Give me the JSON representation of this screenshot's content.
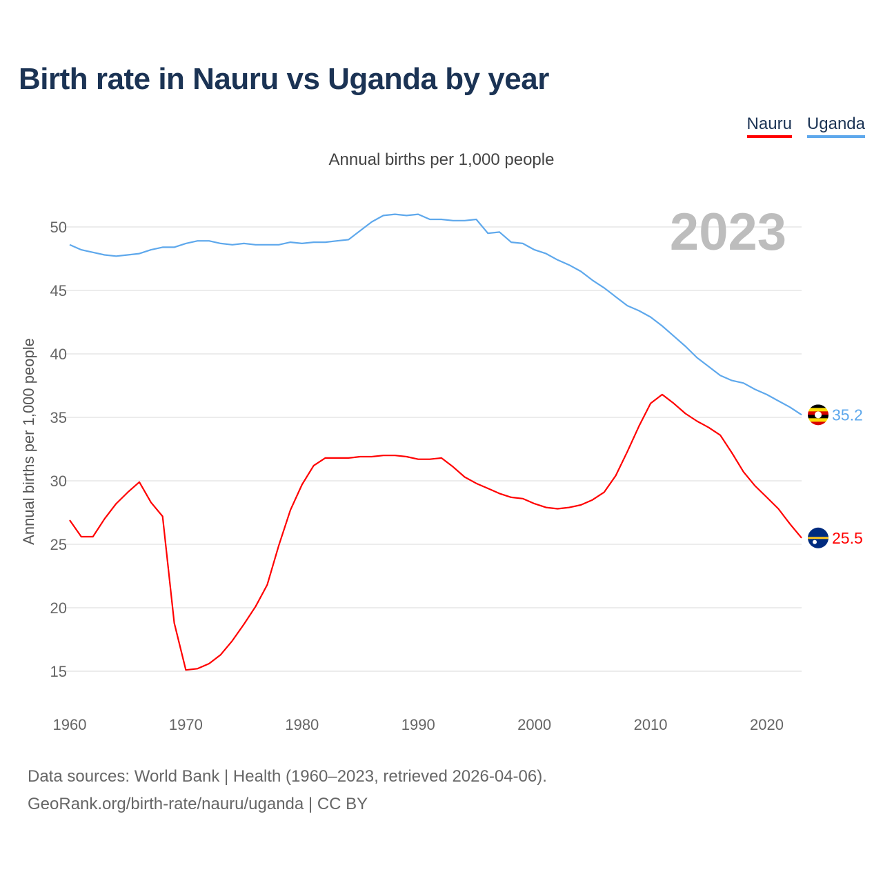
{
  "title": "Birth rate in Nauru vs Uganda by year",
  "legend": [
    {
      "label": "Nauru",
      "color": "#ff0000"
    },
    {
      "label": "Uganda",
      "color": "#5ea8ec"
    }
  ],
  "subtitle": "Annual births per 1,000 people",
  "footer": {
    "line1": "Data sources: World Bank | Health (1960–2023, retrieved 2026-04-06).",
    "line2": "GeoRank.org/birth-rate/nauru/uganda | CC BY"
  },
  "chart_data": {
    "type": "line",
    "title": "Birth rate in Nauru vs Uganda by year",
    "xlabel": "",
    "ylabel": "Annual births per 1,000 people",
    "year_label": "2023",
    "xlim": [
      1960,
      2023
    ],
    "ylim": [
      15,
      50
    ],
    "xticks": [
      1960,
      1970,
      1980,
      1990,
      2000,
      2010,
      2020
    ],
    "yticks": [
      15,
      20,
      25,
      30,
      35,
      40,
      45,
      50
    ],
    "grid": true,
    "legend_position": "top-right",
    "x": [
      1960,
      1961,
      1962,
      1963,
      1964,
      1965,
      1966,
      1967,
      1968,
      1969,
      1970,
      1971,
      1972,
      1973,
      1974,
      1975,
      1976,
      1977,
      1978,
      1979,
      1980,
      1981,
      1982,
      1983,
      1984,
      1985,
      1986,
      1987,
      1988,
      1989,
      1990,
      1991,
      1992,
      1993,
      1994,
      1995,
      1996,
      1997,
      1998,
      1999,
      2000,
      2001,
      2002,
      2003,
      2004,
      2005,
      2006,
      2007,
      2008,
      2009,
      2010,
      2011,
      2012,
      2013,
      2014,
      2015,
      2016,
      2017,
      2018,
      2019,
      2020,
      2021,
      2022,
      2023
    ],
    "series": [
      {
        "name": "Nauru",
        "color": "#ff0000",
        "flag": "nauru-flag",
        "end_label": "25.5",
        "values": [
          26.9,
          25.6,
          25.6,
          27.0,
          28.2,
          29.1,
          29.9,
          28.3,
          27.2,
          18.8,
          15.1,
          15.2,
          15.6,
          16.3,
          17.4,
          18.7,
          20.1,
          21.8,
          24.9,
          27.7,
          29.7,
          31.2,
          31.8,
          31.8,
          31.8,
          31.9,
          31.9,
          32.0,
          32.0,
          31.9,
          31.7,
          31.7,
          31.8,
          31.1,
          30.3,
          29.8,
          29.4,
          29.0,
          28.7,
          28.6,
          28.2,
          27.9,
          27.8,
          27.9,
          28.1,
          28.5,
          29.1,
          30.4,
          32.3,
          34.3,
          36.1,
          36.8,
          36.1,
          35.3,
          34.7,
          34.2,
          33.6,
          32.2,
          30.7,
          29.6,
          28.7,
          27.8,
          26.6,
          25.5
        ]
      },
      {
        "name": "Uganda",
        "color": "#5ea8ec",
        "flag": "uganda-flag",
        "end_label": "35.2",
        "values": [
          48.6,
          48.2,
          48.0,
          47.8,
          47.7,
          47.8,
          47.9,
          48.2,
          48.4,
          48.4,
          48.7,
          48.9,
          48.9,
          48.7,
          48.6,
          48.7,
          48.6,
          48.6,
          48.6,
          48.8,
          48.7,
          48.8,
          48.8,
          48.9,
          49.0,
          49.7,
          50.4,
          50.9,
          51.0,
          50.9,
          51.0,
          50.6,
          50.6,
          50.5,
          50.5,
          50.6,
          49.5,
          49.6,
          48.8,
          48.7,
          48.2,
          47.9,
          47.4,
          47.0,
          46.5,
          45.8,
          45.2,
          44.5,
          43.8,
          43.4,
          42.9,
          42.2,
          41.4,
          40.6,
          39.7,
          39.0,
          38.3,
          37.9,
          37.7,
          37.2,
          36.8,
          36.3,
          35.8,
          35.2
        ]
      }
    ]
  }
}
